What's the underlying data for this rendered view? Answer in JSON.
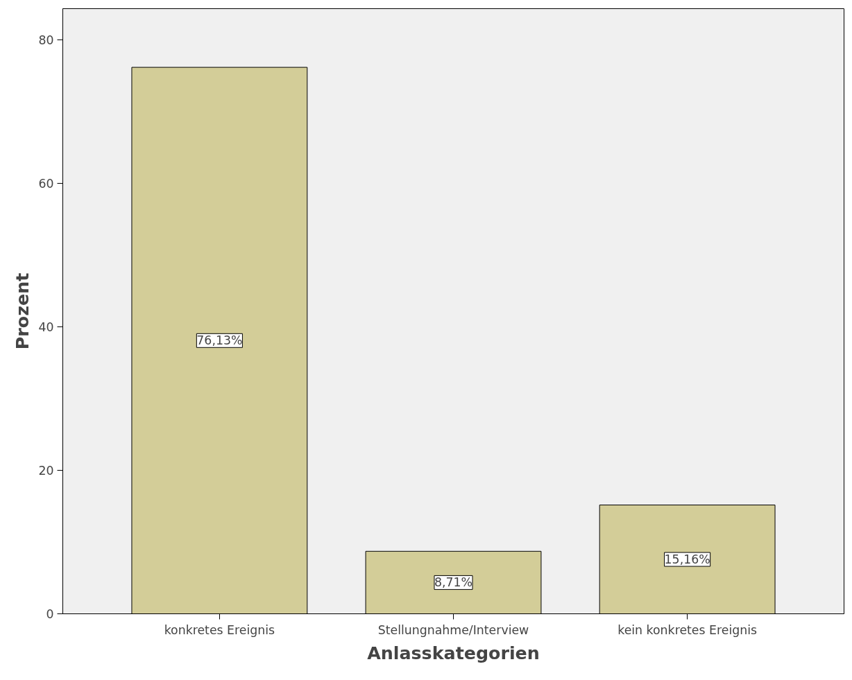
{
  "chart_data": {
    "type": "bar",
    "xlabel": "Anlasskategorien",
    "ylabel": "Prozent",
    "categories": [
      "konkretes Ereignis",
      "Stellungnahme/Interview",
      "kein konkretes Ereignis"
    ],
    "values": [
      76.13,
      8.71,
      15.16
    ],
    "value_labels": [
      "76,13%",
      "8,71%",
      "15,16%"
    ],
    "color": "#d3cd98",
    "ylim": [
      0,
      84.3
    ],
    "yticks": [
      0,
      20,
      40,
      60,
      80
    ],
    "grid": false
  }
}
